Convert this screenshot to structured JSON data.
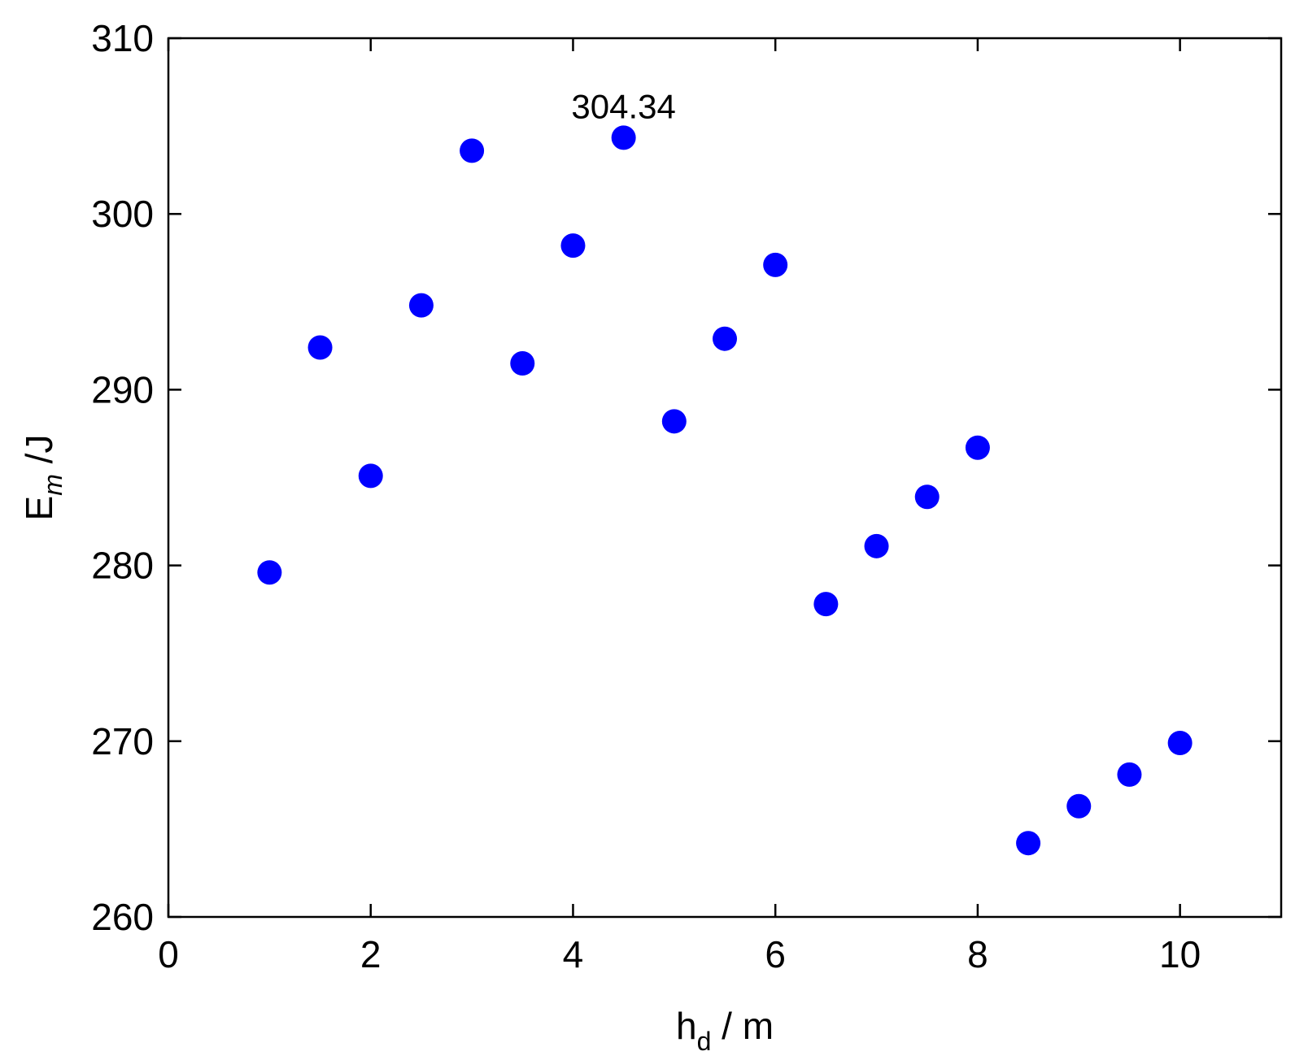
{
  "chart_data": {
    "type": "scatter",
    "title": "",
    "xlabel": {
      "base": "h",
      "sub": "d",
      "rest": " / m"
    },
    "ylabel": {
      "base": "E",
      "sub": "m",
      "rest": " /J"
    },
    "xlim": [
      0,
      11
    ],
    "ylim": [
      260,
      310
    ],
    "xticks": [
      0,
      2,
      4,
      6,
      8,
      10
    ],
    "yticks": [
      260,
      270,
      280,
      290,
      300,
      310
    ],
    "grid": false,
    "legend": "none",
    "marker_color": "#0000ff",
    "series": [
      {
        "points": [
          {
            "x": 1.0,
            "y": 279.6
          },
          {
            "x": 1.5,
            "y": 292.4
          },
          {
            "x": 2.0,
            "y": 285.1
          },
          {
            "x": 2.5,
            "y": 294.8
          },
          {
            "x": 3.0,
            "y": 303.6
          },
          {
            "x": 3.5,
            "y": 291.5
          },
          {
            "x": 4.0,
            "y": 298.2
          },
          {
            "x": 4.5,
            "y": 304.34
          },
          {
            "x": 5.0,
            "y": 288.2
          },
          {
            "x": 5.5,
            "y": 292.9
          },
          {
            "x": 6.0,
            "y": 297.1
          },
          {
            "x": 6.5,
            "y": 277.8
          },
          {
            "x": 7.0,
            "y": 281.1
          },
          {
            "x": 7.5,
            "y": 283.9
          },
          {
            "x": 8.0,
            "y": 286.7
          },
          {
            "x": 8.5,
            "y": 264.2
          },
          {
            "x": 9.0,
            "y": 266.3
          },
          {
            "x": 9.5,
            "y": 268.1
          },
          {
            "x": 10.0,
            "y": 269.9
          }
        ]
      }
    ],
    "annotations": [
      {
        "text": "304.34",
        "x": 4.5,
        "y": 304.34
      }
    ]
  }
}
